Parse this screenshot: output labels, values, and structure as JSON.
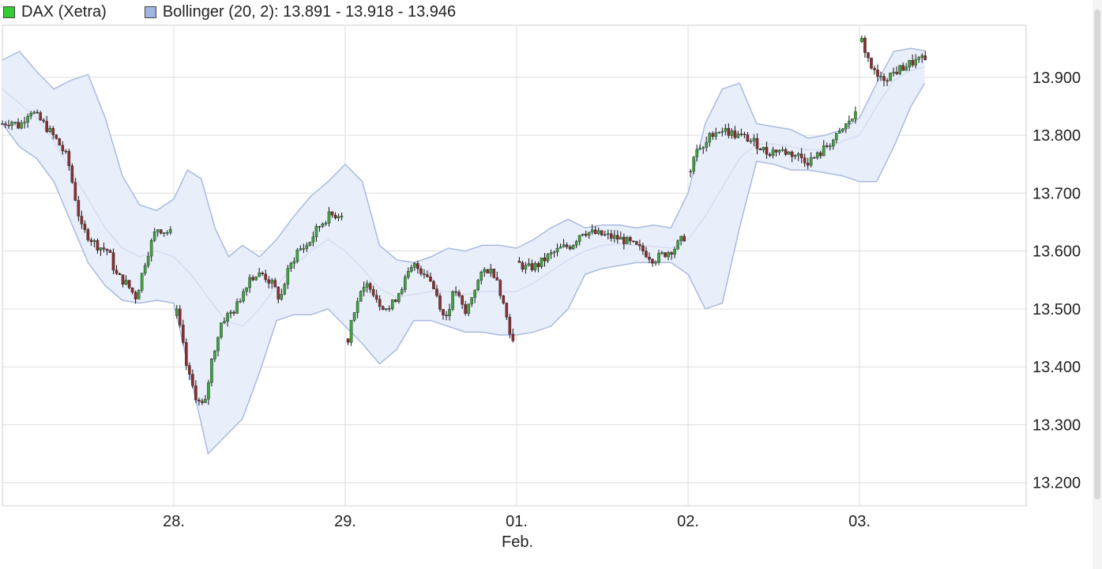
{
  "legend": {
    "dax_label": "DAX (Xetra)",
    "bollinger_label": "Bollinger (20, 2): 13.891 - 13.918 - 13.946"
  },
  "colors": {
    "up": "#3fa33f",
    "down": "#8b2e2e",
    "wick": "#111111",
    "band_fill": "#e9eefb",
    "band_line": "#a9bbdf",
    "middle_line": "#d4def2",
    "grid": "#dddddd",
    "dax_swatch": "#33cc33",
    "bollinger_swatch": "#9fb4e0"
  },
  "chart_data": {
    "type": "candlestick",
    "title": "",
    "xlabel": "Feb.",
    "ylabel": "",
    "x_ticks": [
      "28.",
      "29.",
      "01.",
      "02.",
      "03."
    ],
    "y_ticks": [
      "13.200",
      "13.300",
      "13.400",
      "13.500",
      "13.600",
      "13.700",
      "13.800",
      "13.900"
    ],
    "ylim": [
      13160,
      13990
    ],
    "xlim_days": [
      0,
      6.0
    ],
    "grid": true,
    "legend_position": "top-left",
    "series": [
      {
        "name": "DAX (Xetra)",
        "kind": "intraday-candles"
      },
      {
        "name": "Bollinger (20, 2)",
        "kind": "band",
        "last_values": [
          13891,
          13918,
          13946
        ]
      }
    ],
    "price_path": [
      [
        0.0,
        13820
      ],
      [
        0.05,
        13825
      ],
      [
        0.1,
        13815
      ],
      [
        0.16,
        13845
      ],
      [
        0.24,
        13820
      ],
      [
        0.32,
        13790
      ],
      [
        0.38,
        13760
      ],
      [
        0.42,
        13700
      ],
      [
        0.46,
        13640
      ],
      [
        0.55,
        13610
      ],
      [
        0.62,
        13600
      ],
      [
        0.66,
        13560
      ],
      [
        0.72,
        13545
      ],
      [
        0.78,
        13520
      ],
      [
        0.84,
        13590
      ],
      [
        0.9,
        13640
      ],
      [
        0.99,
        13630
      ],
      [
        1.0,
        13520
      ],
      [
        1.04,
        13460
      ],
      [
        1.08,
        13390
      ],
      [
        1.14,
        13340
      ],
      [
        1.18,
        13330
      ],
      [
        1.22,
        13410
      ],
      [
        1.28,
        13480
      ],
      [
        1.36,
        13500
      ],
      [
        1.44,
        13555
      ],
      [
        1.52,
        13560
      ],
      [
        1.58,
        13540
      ],
      [
        1.62,
        13515
      ],
      [
        1.66,
        13560
      ],
      [
        1.72,
        13600
      ],
      [
        1.78,
        13610
      ],
      [
        1.84,
        13640
      ],
      [
        1.9,
        13660
      ],
      [
        1.98,
        13665
      ],
      [
        2.0,
        13420
      ],
      [
        2.04,
        13490
      ],
      [
        2.08,
        13520
      ],
      [
        2.14,
        13545
      ],
      [
        2.2,
        13510
      ],
      [
        2.26,
        13500
      ],
      [
        2.34,
        13545
      ],
      [
        2.4,
        13575
      ],
      [
        2.48,
        13560
      ],
      [
        2.54,
        13520
      ],
      [
        2.58,
        13480
      ],
      [
        2.64,
        13535
      ],
      [
        2.7,
        13490
      ],
      [
        2.76,
        13540
      ],
      [
        2.82,
        13570
      ],
      [
        2.88,
        13560
      ],
      [
        2.93,
        13500
      ],
      [
        2.98,
        13440
      ],
      [
        3.0,
        13580
      ],
      [
        3.06,
        13570
      ],
      [
        3.12,
        13575
      ],
      [
        3.18,
        13590
      ],
      [
        3.26,
        13605
      ],
      [
        3.32,
        13610
      ],
      [
        3.38,
        13635
      ],
      [
        3.46,
        13630
      ],
      [
        3.54,
        13625
      ],
      [
        3.62,
        13620
      ],
      [
        3.68,
        13610
      ],
      [
        3.74,
        13600
      ],
      [
        3.8,
        13585
      ],
      [
        3.86,
        13595
      ],
      [
        3.92,
        13605
      ],
      [
        3.98,
        13625
      ],
      [
        4.0,
        13710
      ],
      [
        4.04,
        13780
      ],
      [
        4.08,
        13770
      ],
      [
        4.14,
        13805
      ],
      [
        4.2,
        13810
      ],
      [
        4.28,
        13800
      ],
      [
        4.34,
        13795
      ],
      [
        4.4,
        13785
      ],
      [
        4.46,
        13770
      ],
      [
        4.52,
        13775
      ],
      [
        4.58,
        13770
      ],
      [
        4.64,
        13765
      ],
      [
        4.7,
        13755
      ],
      [
        4.76,
        13765
      ],
      [
        4.82,
        13785
      ],
      [
        4.88,
        13800
      ],
      [
        4.94,
        13825
      ],
      [
        4.98,
        13835
      ],
      [
        5.0,
        13975
      ],
      [
        5.04,
        13940
      ],
      [
        5.08,
        13910
      ],
      [
        5.12,
        13895
      ],
      [
        5.18,
        13905
      ],
      [
        5.24,
        13915
      ],
      [
        5.3,
        13925
      ],
      [
        5.36,
        13930
      ],
      [
        5.4,
        13928
      ]
    ],
    "bollinger_upper": [
      [
        0.0,
        13930
      ],
      [
        0.1,
        13945
      ],
      [
        0.2,
        13910
      ],
      [
        0.3,
        13880
      ],
      [
        0.4,
        13895
      ],
      [
        0.5,
        13905
      ],
      [
        0.6,
        13830
      ],
      [
        0.7,
        13730
      ],
      [
        0.8,
        13680
      ],
      [
        0.9,
        13670
      ],
      [
        1.0,
        13690
      ],
      [
        1.08,
        13740
      ],
      [
        1.16,
        13725
      ],
      [
        1.24,
        13640
      ],
      [
        1.32,
        13590
      ],
      [
        1.4,
        13610
      ],
      [
        1.5,
        13590
      ],
      [
        1.6,
        13620
      ],
      [
        1.7,
        13660
      ],
      [
        1.8,
        13695
      ],
      [
        1.9,
        13720
      ],
      [
        2.0,
        13750
      ],
      [
        2.1,
        13720
      ],
      [
        2.2,
        13610
      ],
      [
        2.3,
        13585
      ],
      [
        2.4,
        13580
      ],
      [
        2.5,
        13590
      ],
      [
        2.6,
        13605
      ],
      [
        2.7,
        13600
      ],
      [
        2.8,
        13610
      ],
      [
        2.9,
        13610
      ],
      [
        3.0,
        13605
      ],
      [
        3.1,
        13620
      ],
      [
        3.2,
        13640
      ],
      [
        3.3,
        13655
      ],
      [
        3.4,
        13640
      ],
      [
        3.5,
        13645
      ],
      [
        3.6,
        13645
      ],
      [
        3.7,
        13640
      ],
      [
        3.8,
        13645
      ],
      [
        3.9,
        13640
      ],
      [
        4.0,
        13700
      ],
      [
        4.1,
        13820
      ],
      [
        4.2,
        13880
      ],
      [
        4.3,
        13890
      ],
      [
        4.4,
        13820
      ],
      [
        4.5,
        13815
      ],
      [
        4.6,
        13810
      ],
      [
        4.7,
        13795
      ],
      [
        4.8,
        13800
      ],
      [
        4.9,
        13810
      ],
      [
        5.0,
        13830
      ],
      [
        5.1,
        13890
      ],
      [
        5.2,
        13945
      ],
      [
        5.3,
        13950
      ],
      [
        5.38,
        13946
      ]
    ],
    "bollinger_middle": [
      [
        0.0,
        13880
      ],
      [
        0.1,
        13855
      ],
      [
        0.2,
        13830
      ],
      [
        0.3,
        13790
      ],
      [
        0.4,
        13740
      ],
      [
        0.5,
        13690
      ],
      [
        0.6,
        13640
      ],
      [
        0.7,
        13605
      ],
      [
        0.8,
        13590
      ],
      [
        0.9,
        13600
      ],
      [
        1.0,
        13590
      ],
      [
        1.1,
        13560
      ],
      [
        1.2,
        13520
      ],
      [
        1.3,
        13480
      ],
      [
        1.4,
        13470
      ],
      [
        1.5,
        13500
      ],
      [
        1.6,
        13540
      ],
      [
        1.7,
        13575
      ],
      [
        1.8,
        13600
      ],
      [
        1.9,
        13620
      ],
      [
        2.0,
        13600
      ],
      [
        2.1,
        13570
      ],
      [
        2.2,
        13535
      ],
      [
        2.3,
        13520
      ],
      [
        2.4,
        13525
      ],
      [
        2.5,
        13530
      ],
      [
        2.6,
        13530
      ],
      [
        2.7,
        13525
      ],
      [
        2.8,
        13530
      ],
      [
        2.9,
        13530
      ],
      [
        3.0,
        13530
      ],
      [
        3.1,
        13545
      ],
      [
        3.2,
        13565
      ],
      [
        3.3,
        13585
      ],
      [
        3.4,
        13600
      ],
      [
        3.5,
        13610
      ],
      [
        3.6,
        13612
      ],
      [
        3.7,
        13610
      ],
      [
        3.8,
        13608
      ],
      [
        3.9,
        13605
      ],
      [
        4.0,
        13620
      ],
      [
        4.1,
        13660
      ],
      [
        4.2,
        13710
      ],
      [
        4.3,
        13760
      ],
      [
        4.4,
        13785
      ],
      [
        4.5,
        13785
      ],
      [
        4.6,
        13780
      ],
      [
        4.7,
        13775
      ],
      [
        4.8,
        13775
      ],
      [
        4.9,
        13790
      ],
      [
        5.0,
        13800
      ],
      [
        5.1,
        13850
      ],
      [
        5.2,
        13895
      ],
      [
        5.3,
        13912
      ],
      [
        5.38,
        13918
      ]
    ],
    "bollinger_lower": [
      [
        0.0,
        13820
      ],
      [
        0.1,
        13780
      ],
      [
        0.2,
        13760
      ],
      [
        0.3,
        13720
      ],
      [
        0.4,
        13650
      ],
      [
        0.5,
        13580
      ],
      [
        0.6,
        13540
      ],
      [
        0.7,
        13515
      ],
      [
        0.8,
        13510
      ],
      [
        0.9,
        13515
      ],
      [
        1.0,
        13510
      ],
      [
        1.1,
        13380
      ],
      [
        1.2,
        13250
      ],
      [
        1.3,
        13280
      ],
      [
        1.4,
        13310
      ],
      [
        1.5,
        13390
      ],
      [
        1.6,
        13480
      ],
      [
        1.7,
        13490
      ],
      [
        1.8,
        13490
      ],
      [
        1.9,
        13500
      ],
      [
        2.0,
        13470
      ],
      [
        2.1,
        13440
      ],
      [
        2.2,
        13405
      ],
      [
        2.3,
        13430
      ],
      [
        2.4,
        13480
      ],
      [
        2.5,
        13480
      ],
      [
        2.6,
        13470
      ],
      [
        2.7,
        13460
      ],
      [
        2.8,
        13460
      ],
      [
        2.9,
        13455
      ],
      [
        3.0,
        13455
      ],
      [
        3.1,
        13460
      ],
      [
        3.2,
        13470
      ],
      [
        3.3,
        13500
      ],
      [
        3.4,
        13560
      ],
      [
        3.5,
        13570
      ],
      [
        3.6,
        13575
      ],
      [
        3.7,
        13580
      ],
      [
        3.8,
        13580
      ],
      [
        3.9,
        13580
      ],
      [
        4.0,
        13560
      ],
      [
        4.1,
        13500
      ],
      [
        4.2,
        13510
      ],
      [
        4.3,
        13640
      ],
      [
        4.4,
        13755
      ],
      [
        4.5,
        13750
      ],
      [
        4.6,
        13740
      ],
      [
        4.7,
        13740
      ],
      [
        4.8,
        13735
      ],
      [
        4.9,
        13730
      ],
      [
        5.0,
        13720
      ],
      [
        5.1,
        13720
      ],
      [
        5.2,
        13780
      ],
      [
        5.3,
        13850
      ],
      [
        5.38,
        13890
      ]
    ]
  }
}
